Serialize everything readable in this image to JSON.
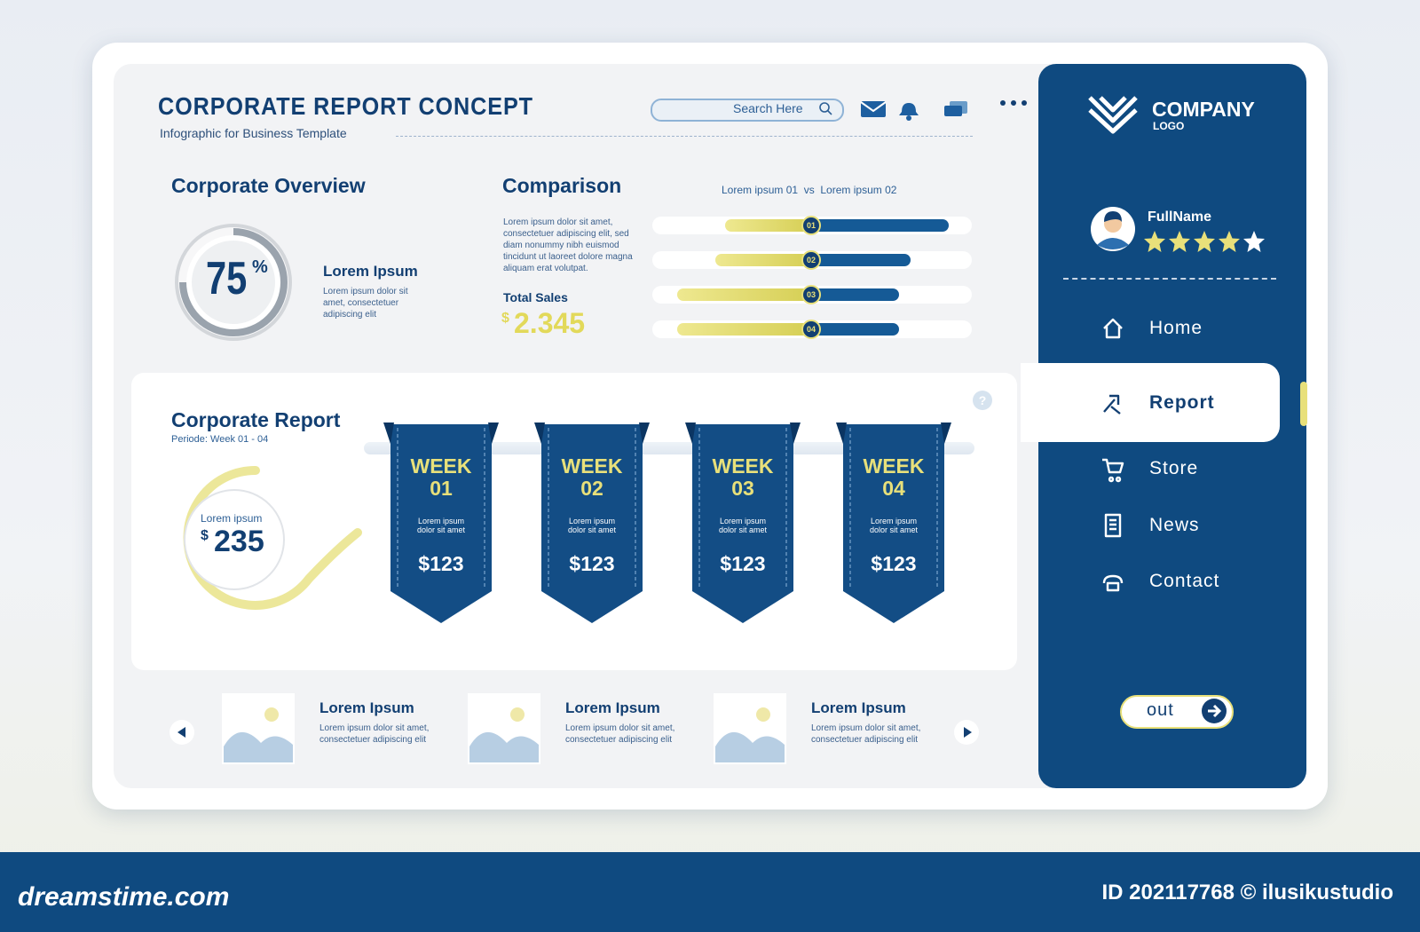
{
  "header": {
    "title": "CORPORATE REPORT CONCEPT",
    "subtitle": "Infographic for Business Template",
    "search": "Search Here"
  },
  "overview": {
    "title": "Corporate Overview",
    "percent": 75,
    "percent_sign": "%",
    "heading": "Lorem Ipsum",
    "text": "Lorem ipsum dolor sit amet, consectetuer adipiscing elit"
  },
  "comparison": {
    "title": "Comparison",
    "legend": "Lorem ipsum 01  vs  Lorem ipsum 02",
    "text": "Lorem ipsum dolor sit amet, consectetuer adipiscing elit, sed diam nonummy nibh euismod tincidunt ut laoreet dolore magna aliquam erat volutpat.",
    "total_label": "Total Sales",
    "currency": "$",
    "total": "2.345",
    "rows": [
      {
        "label": "01",
        "left": 54,
        "right": 86
      },
      {
        "label": "02",
        "left": 60,
        "right": 62
      },
      {
        "label": "03",
        "left": 84,
        "right": 55
      },
      {
        "label": "04",
        "left": 84,
        "right": 55
      }
    ]
  },
  "report": {
    "title": "Corporate Report",
    "period": "Periode: Week 01 - 04",
    "ring_label": "Lorem ipsum",
    "currency": "$",
    "amount": 235,
    "weeks": [
      {
        "label": "WEEK",
        "number": "01",
        "text": "Lorem ipsum dolor sit amet",
        "amount": "$123"
      },
      {
        "label": "WEEK",
        "number": "02",
        "text": "Lorem ipsum dolor sit amet",
        "amount": "$123"
      },
      {
        "label": "WEEK",
        "number": "03",
        "text": "Lorem ipsum dolor sit amet",
        "amount": "$123"
      },
      {
        "label": "WEEK",
        "number": "04",
        "text": "Lorem ipsum dolor sit amet",
        "amount": "$123"
      }
    ]
  },
  "gallery": [
    {
      "title": "Lorem Ipsum",
      "text": "Lorem ipsum dolor sit amet, consectetuer adipiscing elit"
    },
    {
      "title": "Lorem Ipsum",
      "text": "Lorem ipsum dolor sit amet, consectetuer adipiscing elit"
    },
    {
      "title": "Lorem Ipsum",
      "text": "Lorem ipsum dolor sit amet, consectetuer adipiscing elit"
    }
  ],
  "sidebar": {
    "logo_main": "COMPANY",
    "logo_sub": "LOGO",
    "user": "FullName",
    "rating": 4,
    "rating_max": 5,
    "nav": [
      "Home",
      "Report",
      "Store",
      "News",
      "Contact"
    ],
    "active": "Report",
    "logout": "out"
  },
  "footer": {
    "site": "dreamstime.com",
    "credit": "ID 202117768 © ilusikustudio"
  }
}
